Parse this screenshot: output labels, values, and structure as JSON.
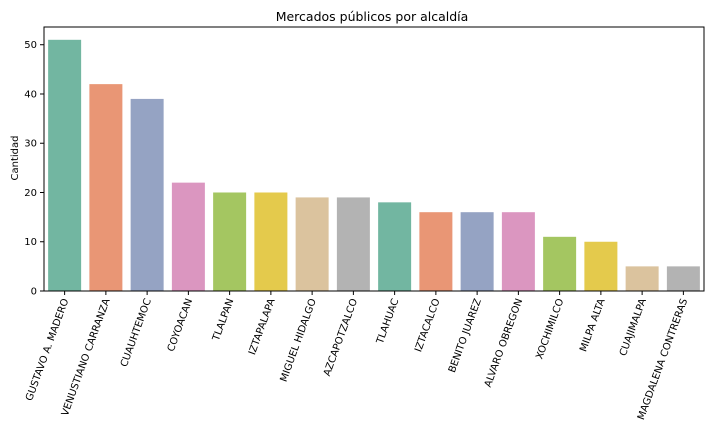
{
  "chart_data": {
    "type": "bar",
    "title": "Mercados públicos por alcaldía",
    "xlabel": "",
    "ylabel": "Cantidad",
    "ylim": [
      0,
      53.6
    ],
    "yticks": [
      0,
      10,
      20,
      30,
      40,
      50
    ],
    "grid": false,
    "categories": [
      "GUSTAVO A. MADERO",
      "VENUSTIANO CARRANZA",
      "CUAUHTEMOC",
      "COYOACAN",
      "TLALPAN",
      "IZTAPALAPA",
      "MIGUEL HIDALGO",
      "AZCAPOTZALCO",
      "TLAHUAC",
      "IZTACALCO",
      "BENITO JUAREZ",
      "ALVARO OBREGON",
      "XOCHIMILCO",
      "MILPA ALTA",
      "CUAJIMALPA",
      "MAGDALENA CONTRERAS"
    ],
    "values": [
      51,
      42,
      39,
      22,
      20,
      20,
      19,
      19,
      18,
      16,
      16,
      16,
      11,
      10,
      5,
      5
    ],
    "colors": [
      "#72b6a1",
      "#e99675",
      "#95a3c3",
      "#db96c0",
      "#a4c661",
      "#e4ca4c",
      "#dbc39e",
      "#b3b3b3",
      "#72b6a1",
      "#e99675",
      "#95a3c3",
      "#db96c0",
      "#a4c661",
      "#e4ca4c",
      "#dbc39e",
      "#b3b3b3"
    ]
  }
}
